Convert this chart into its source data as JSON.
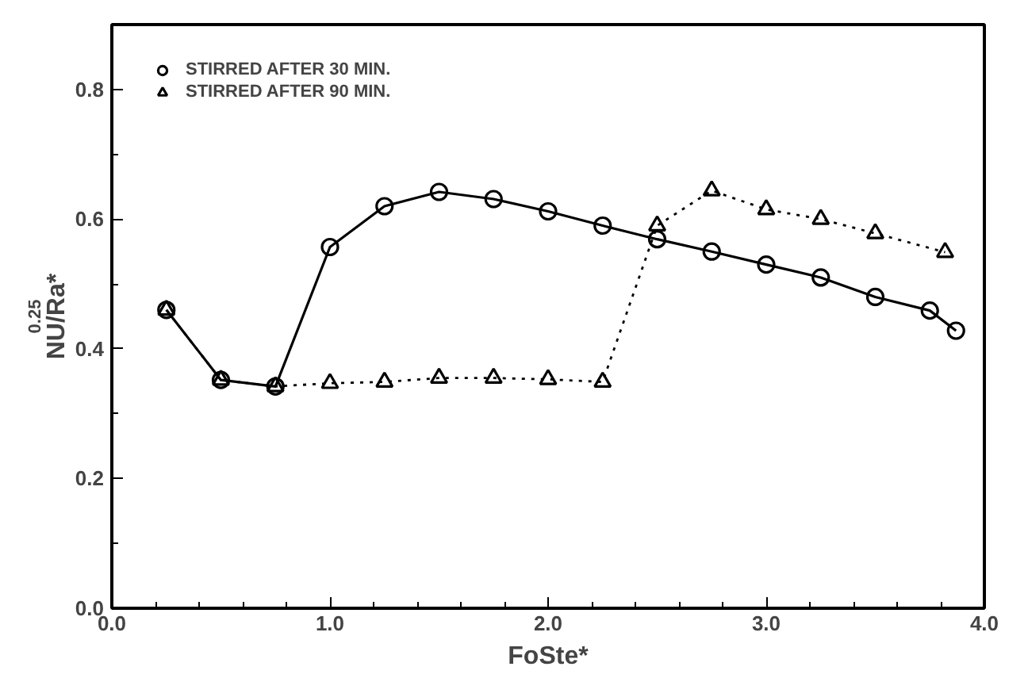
{
  "chart_data": {
    "type": "line",
    "xlabel": "FoSte*",
    "ylabel": "NU/Ra*$^{0.25}$",
    "xlim": [
      0,
      4
    ],
    "ylim": [
      0,
      0.9
    ],
    "xticks": [
      {
        "value": 0,
        "label": "0.0"
      },
      {
        "value": 1,
        "label": "1.0"
      },
      {
        "value": 2,
        "label": "2.0"
      },
      {
        "value": 3,
        "label": "3.0"
      },
      {
        "value": 4,
        "label": "4.0"
      }
    ],
    "yticks": [
      {
        "value": 0,
        "label": "0.0"
      },
      {
        "value": 0.2,
        "label": "0.2"
      },
      {
        "value": 0.4,
        "label": "0.4"
      },
      {
        "value": 0.6,
        "label": "0.6"
      },
      {
        "value": 0.8,
        "label": "0.8"
      }
    ],
    "grid": false,
    "legend": "top left",
    "series": [
      {
        "name": "STIRRED AFTER 30 MIN.",
        "color": "#000000",
        "marker": "circle",
        "line_style": "solid",
        "x": [
          0.25,
          0.5,
          0.75,
          1.0,
          1.25,
          1.5,
          1.75,
          2.0,
          2.25,
          2.5,
          2.75,
          3.0,
          3.25,
          3.5,
          3.75,
          3.87
        ],
        "values": [
          0.46,
          0.352,
          0.342,
          0.557,
          0.62,
          0.642,
          0.631,
          0.612,
          0.59,
          0.569,
          0.55,
          0.53,
          0.51,
          0.48,
          0.459,
          0.428
        ]
      },
      {
        "name": "STIRRED AFTER 90 MIN.",
        "color": "#000000",
        "marker": "triangle",
        "line_style": "dotted",
        "x": [
          0.25,
          0.5,
          0.75,
          1.0,
          1.25,
          1.5,
          1.75,
          2.0,
          2.25,
          2.5,
          2.75,
          3.0,
          3.25,
          3.5,
          3.82
        ],
        "values": [
          0.46,
          0.352,
          0.342,
          0.347,
          0.349,
          0.355,
          0.355,
          0.353,
          0.349,
          0.59,
          0.644,
          0.615,
          0.6,
          0.578,
          0.549
        ]
      }
    ]
  }
}
